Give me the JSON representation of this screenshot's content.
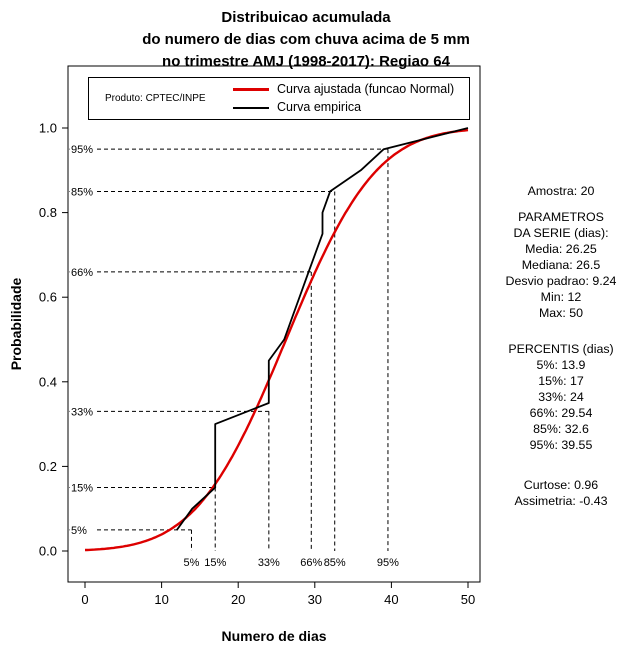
{
  "title": {
    "lines": [
      "Distribuicao acumulada",
      "do numero de dias com chuva acima de 5 mm",
      "no trimestre AMJ (1998-2017): Regiao 64"
    ]
  },
  "legend": {
    "product": "Produto: CPTEC/INPE",
    "entries": [
      {
        "label": "Curva ajustada (funcao Normal)",
        "color": "#dd0000"
      },
      {
        "label": "Curva empirica",
        "color": "#000000"
      }
    ]
  },
  "stats": {
    "amostra": "Amostra: 20",
    "params_title1": "PARAMETROS",
    "params_title2": "DA SERIE (dias):",
    "params": [
      "Media: 26.25",
      "Mediana: 26.5",
      "Desvio padrao: 9.24",
      "Min: 12",
      "Max: 50"
    ],
    "percentis_title": "PERCENTIS (dias)",
    "percentis": [
      "5%: 13.9",
      "15%: 17",
      "33%: 24",
      "66%: 29.54",
      "85%: 32.6",
      "95%: 39.55"
    ],
    "curtose": "Curtose: 0.96",
    "assimetria": "Assimetria: -0.43"
  },
  "chart_data": {
    "type": "line",
    "title": "Distribuicao acumulada do numero de dias com chuva acima de 5 mm no trimestre AMJ (1998-2017): Regiao 64",
    "xlabel": "Numero de dias",
    "ylabel": "Probabilidade",
    "xlim": [
      0,
      50
    ],
    "ylim": [
      0,
      1
    ],
    "x_ticks": [
      0,
      10,
      20,
      30,
      40,
      50
    ],
    "y_ticks": [
      0,
      0.2,
      0.4,
      0.6,
      0.8,
      1
    ],
    "grid": false,
    "legend_position": "top-inside",
    "series": [
      {
        "name": "Curva ajustada (funcao Normal)",
        "type": "normal_cdf",
        "color": "#dd0000",
        "mean": 26.25,
        "sd": 9.24
      },
      {
        "name": "Curva empirica",
        "type": "polyline",
        "color": "#000000",
        "x": [
          12,
          14,
          17,
          17,
          17,
          17,
          24,
          24,
          24,
          26,
          27,
          28,
          29,
          30,
          31,
          31,
          32,
          36,
          39,
          50
        ],
        "p": [
          0.05,
          0.1,
          0.15,
          0.2,
          0.25,
          0.3,
          0.35,
          0.4,
          0.45,
          0.5,
          0.55,
          0.6,
          0.65,
          0.7,
          0.75,
          0.8,
          0.85,
          0.9,
          0.95,
          1.0
        ]
      }
    ],
    "percentile_markers": [
      {
        "label": "5%",
        "p": 0.05,
        "x": 13.9
      },
      {
        "label": "15%",
        "p": 0.15,
        "x": 17
      },
      {
        "label": "33%",
        "p": 0.33,
        "x": 24
      },
      {
        "label": "66%",
        "p": 0.66,
        "x": 29.54
      },
      {
        "label": "85%",
        "p": 0.85,
        "x": 32.6
      },
      {
        "label": "95%",
        "p": 0.95,
        "x": 39.55
      }
    ],
    "sample_stats": {
      "n": 20,
      "mean": 26.25,
      "median": 26.5,
      "sd": 9.24,
      "min": 12,
      "max": 50,
      "kurtosis": 0.96,
      "skewness": -0.43
    }
  }
}
